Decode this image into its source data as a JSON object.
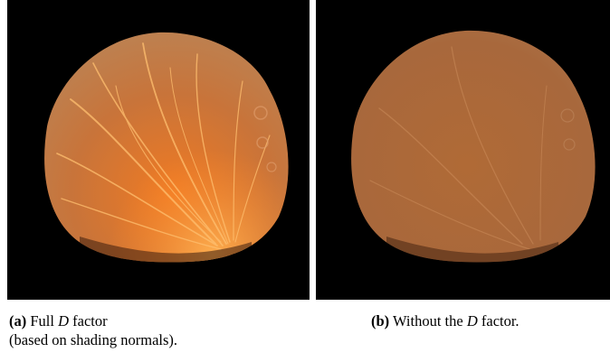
{
  "figure": {
    "panels": [
      {
        "id": "a",
        "tag": "(a)",
        "caption_pre": "Full",
        "caption_symbol": "D",
        "caption_post": "factor",
        "caption_line2": "(based on shading normals).",
        "appearance": {
          "base_color": "#c8743a",
          "highlight_color": "#ff9a3c",
          "filaments": "bright"
        }
      },
      {
        "id": "b",
        "tag": "(b)",
        "caption_pre": "Without the",
        "caption_symbol": "D",
        "caption_post": "factor.",
        "appearance": {
          "base_color": "#a8683c",
          "highlight_color": "#d68a50",
          "filaments": "faint"
        }
      }
    ]
  }
}
